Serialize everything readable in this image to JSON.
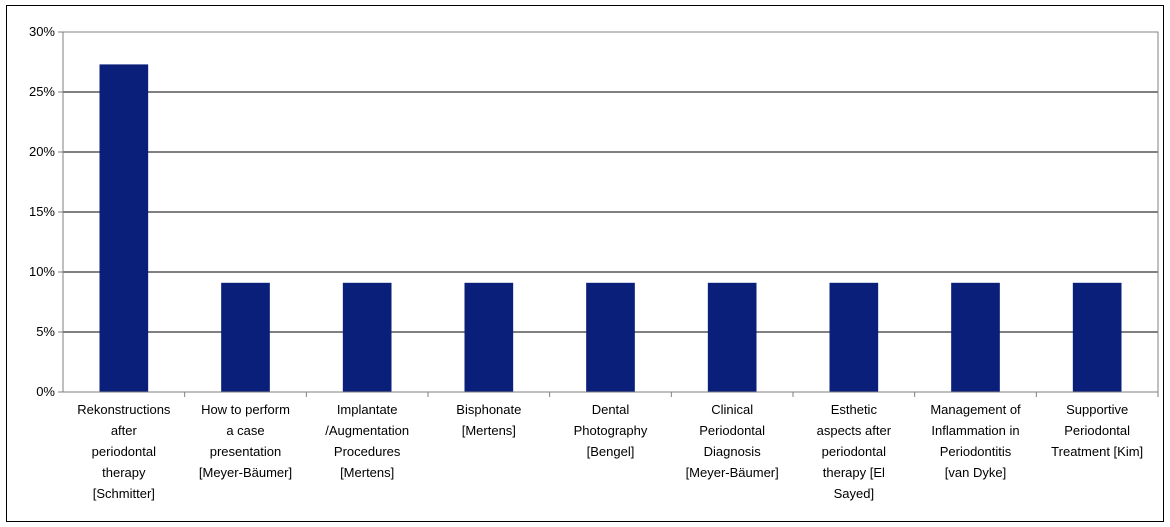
{
  "chart_data": {
    "type": "bar",
    "categories": [
      [
        "Rekonstructions",
        "after",
        "periodontal",
        "therapy",
        "[Schmitter]"
      ],
      [
        "How to perform",
        "a case",
        "presentation",
        "[Meyer-Bäumer]"
      ],
      [
        "Implantate",
        "/Augmentation",
        "Procedures",
        "[Mertens]"
      ],
      [
        "Bisphonate",
        "[Mertens]"
      ],
      [
        "Dental",
        "Photography",
        "[Bengel]"
      ],
      [
        "Clinical",
        "Periodontal",
        "Diagnosis",
        "[Meyer-Bäumer]"
      ],
      [
        "Esthetic",
        "aspects after",
        "periodontal",
        "therapy [El",
        "Sayed]"
      ],
      [
        "Management of",
        "Inflammation in",
        "Periodontitis",
        "[van Dyke]"
      ],
      [
        "Supportive",
        "Periodontal",
        "Treatment [Kim]"
      ]
    ],
    "values": [
      27.3,
      9.1,
      9.1,
      9.1,
      9.1,
      9.1,
      9.1,
      9.1,
      9.1
    ],
    "ylim": [
      0,
      30
    ],
    "yticks": [
      "0%",
      "5%",
      "10%",
      "15%",
      "20%",
      "25%",
      "30%"
    ],
    "grid": true,
    "title": "",
    "xlabel": "",
    "ylabel": "",
    "colors": {
      "bar": "#0a1f7a",
      "gridline": "#000000",
      "axis": "#7f7f7f",
      "plot_border": "#808080"
    }
  }
}
